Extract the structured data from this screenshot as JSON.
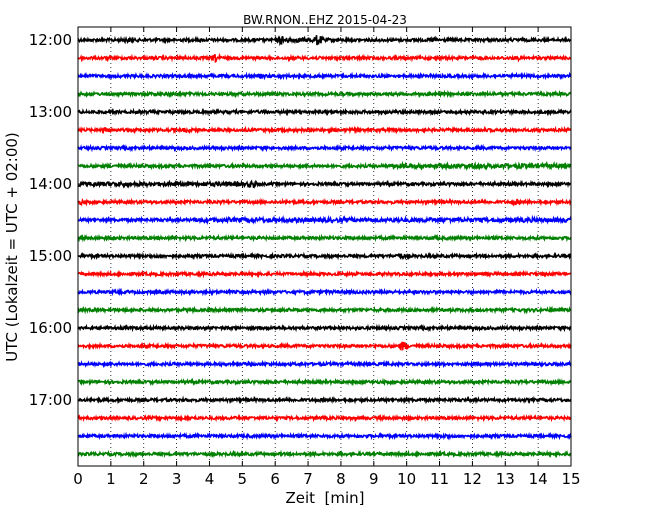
{
  "chart_data": {
    "type": "line",
    "title": "BW.RNON..EHZ 2015-04-23",
    "xlabel": "Zeit  [min]",
    "ylabel": "UTC (Lokalzeit = UTC + 02:00)",
    "xlim": [
      0,
      15
    ],
    "x_ticks": [
      "0",
      "1",
      "2",
      "3",
      "4",
      "5",
      "6",
      "7",
      "8",
      "9",
      "10",
      "11",
      "12",
      "13",
      "14",
      "15"
    ],
    "y_ticks": [
      "12:00",
      "13:00",
      "14:00",
      "15:00",
      "16:00",
      "17:00"
    ],
    "grid": "vertical dotted",
    "trace_minutes": 15,
    "trace_start": "12:00",
    "trace_count": 24,
    "colors": [
      "#000000",
      "#ff0000",
      "#0000ff",
      "#008000"
    ],
    "events": [
      {
        "trace": 0,
        "minute": 1.5,
        "amp": 1.4
      },
      {
        "trace": 0,
        "minute": 6.2,
        "amp": 2.2
      },
      {
        "trace": 0,
        "minute": 7.3,
        "amp": 2.6
      },
      {
        "trace": 0,
        "minute": 10.8,
        "amp": 1.5
      },
      {
        "trace": 1,
        "minute": 4.2,
        "amp": 2.0
      },
      {
        "trace": 1,
        "minute": 7.2,
        "amp": 1.2
      },
      {
        "trace": 1,
        "minute": 13.4,
        "amp": 1.3
      },
      {
        "trace": 2,
        "minute": 4.5,
        "amp": 1.1
      },
      {
        "trace": 2,
        "minute": 5.6,
        "amp": 1.3
      },
      {
        "trace": 2,
        "minute": 10.6,
        "amp": 1.3
      },
      {
        "trace": 3,
        "minute": 2.3,
        "amp": 1.1
      },
      {
        "trace": 4,
        "minute": 4.5,
        "amp": 1.1
      },
      {
        "trace": 4,
        "minute": 11.4,
        "amp": 1.2
      },
      {
        "trace": 5,
        "minute": 0.8,
        "amp": 1.8
      },
      {
        "trace": 5,
        "minute": 3.3,
        "amp": 1.3
      },
      {
        "trace": 5,
        "minute": 14.0,
        "amp": 1.2
      },
      {
        "trace": 6,
        "minute": 6.3,
        "amp": 1.2
      },
      {
        "trace": 6,
        "minute": 5.7,
        "amp": 1.0
      },
      {
        "trace": 7,
        "minute": 12.0,
        "amp": 1.5
      },
      {
        "trace": 7,
        "minute": 13.5,
        "amp": 1.5
      },
      {
        "trace": 8,
        "minute": 1.0,
        "amp": 1.3
      },
      {
        "trace": 8,
        "minute": 5.3,
        "amp": 1.9
      },
      {
        "trace": 9,
        "minute": 0.1,
        "amp": 1.4
      },
      {
        "trace": 9,
        "minute": 13.3,
        "amp": 1.6
      },
      {
        "trace": 10,
        "minute": 4.8,
        "amp": 1.1
      },
      {
        "trace": 10,
        "minute": 9.0,
        "amp": 1.1
      },
      {
        "trace": 11,
        "minute": 1.0,
        "amp": 1.3
      },
      {
        "trace": 11,
        "minute": 10.9,
        "amp": 1.4
      },
      {
        "trace": 12,
        "minute": 2.5,
        "amp": 1.2
      },
      {
        "trace": 12,
        "minute": 9.8,
        "amp": 1.6
      },
      {
        "trace": 14,
        "minute": 7.0,
        "amp": 1.1
      },
      {
        "trace": 15,
        "minute": 4.5,
        "amp": 1.2
      },
      {
        "trace": 17,
        "minute": 9.9,
        "amp": 2.3
      },
      {
        "trace": 18,
        "minute": 13.5,
        "amp": 1.0
      },
      {
        "trace": 21,
        "minute": 5.0,
        "amp": 1.0
      },
      {
        "trace": 22,
        "minute": 11.2,
        "amp": 1.3
      },
      {
        "trace": 23,
        "minute": 1.2,
        "amp": 1.0
      }
    ],
    "noisy_segments": [
      {
        "trace": 0,
        "from": 6.0,
        "to": 7.6,
        "amp": 1.6
      },
      {
        "trace": 7,
        "from": 9.5,
        "to": 15.0,
        "amp": 1.6
      },
      {
        "trace": 8,
        "from": 0.0,
        "to": 5.5,
        "amp": 1.5
      },
      {
        "trace": 10,
        "from": 3.5,
        "to": 15.0,
        "amp": 1.5
      }
    ]
  }
}
